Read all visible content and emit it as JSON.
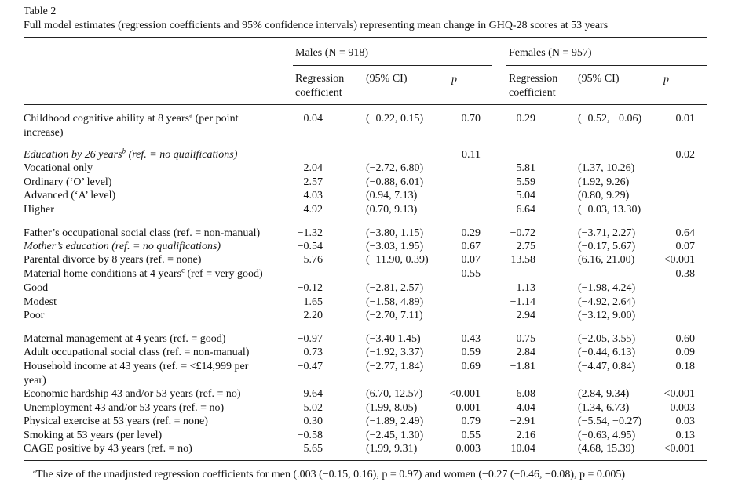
{
  "table": {
    "number": "Table 2",
    "caption": "Full model estimates (regression coefficients and 95% confidence intervals) representing mean change in GHQ-28 scores at 53 years",
    "group_males": "Males (N = 918)",
    "group_females": "Females (N = 957)",
    "col_coef_line1": "Regression",
    "col_coef_line2": "coefficient",
    "col_ci": "(95% CI)",
    "col_p": "p",
    "rows": [
      {
        "label": "Childhood cognitive ability at 8 years",
        "sup": "a",
        "label_cont": " (per point",
        "label2": "increase)",
        "m_coef": "−0.04",
        "m_ci": "(−0.22, 0.15)",
        "m_p": "0.70",
        "f_coef": "−0.29",
        "f_ci": "(−0.52, −0.06)",
        "f_p": "0.01"
      },
      {
        "label": "Education by 26 years",
        "sup": "b",
        "label_cont": " (ref. = no qualifications)",
        "m_p": "0.11",
        "f_p": "0.02"
      },
      {
        "label": "Vocational only",
        "m_coef": "2.04",
        "m_ci": "(−2.72, 6.80)",
        "f_coef": "5.81",
        "f_ci": "(1.37, 10.26)"
      },
      {
        "label": "Ordinary (‘O’ level)",
        "m_coef": "2.57",
        "m_ci": "(−0.88, 6.01)",
        "f_coef": "5.59",
        "f_ci": "(1.92, 9.26)"
      },
      {
        "label": "Advanced (‘A’ level)",
        "m_coef": "4.03",
        "m_ci": "(0.94, 7.13)",
        "f_coef": "5.04",
        "f_ci": "(0.80, 9.29)"
      },
      {
        "label": "Higher",
        "m_coef": "4.92",
        "m_ci": "(0.70, 9.13)",
        "f_coef": "6.64",
        "f_ci": "(−0.03, 13.30)"
      },
      {
        "label": "Father’s occupational social class (ref. = non-manual)",
        "m_coef": "−1.32",
        "m_ci": "(−3.80, 1.15)",
        "m_p": "0.29",
        "f_coef": "−0.72",
        "f_ci": "(−3.71, 2.27)",
        "f_p": "0.64"
      },
      {
        "label": "Mother’s education (ref. = no qualifications)",
        "m_coef": "−0.54",
        "m_ci": "(−3.03, 1.95)",
        "m_p": "0.67",
        "f_coef": "2.75",
        "f_ci": "(−0.17, 5.67)",
        "f_p": "0.07"
      },
      {
        "label": "Parental divorce by 8 years (ref. = none)",
        "m_coef": "−5.76",
        "m_ci": "(−11.90, 0.39)",
        "m_p": "0.07",
        "f_coef": "13.58",
        "f_ci": "(6.16, 21.00)",
        "f_p": "<0.001"
      },
      {
        "label": "Material home conditions at 4 years",
        "sup": "c",
        "label_cont": " (ref = very good)",
        "m_p": "0.55",
        "f_p": "0.38"
      },
      {
        "label": "Good",
        "m_coef": "−0.12",
        "m_ci": "(−2.81, 2.57)",
        "f_coef": "1.13",
        "f_ci": "(−1.98, 4.24)"
      },
      {
        "label": "Modest",
        "m_coef": "1.65",
        "m_ci": "(−1.58, 4.89)",
        "f_coef": "−1.14",
        "f_ci": "(−4.92, 2.64)"
      },
      {
        "label": "Poor",
        "m_coef": "2.20",
        "m_ci": "(−2.70, 7.11)",
        "f_coef": "2.94",
        "f_ci": "(−3.12, 9.00)"
      },
      {
        "label": "Maternal management at 4 years (ref. = good)",
        "m_coef": "−0.97",
        "m_ci": "(−3.40 1.45)",
        "m_p": "0.43",
        "f_coef": "0.75",
        "f_ci": "(−2.05, 3.55)",
        "f_p": "0.60"
      },
      {
        "label": "Adult occupational social class (ref. = non-manual)",
        "m_coef": "0.73",
        "m_ci": "(−1.92, 3.37)",
        "m_p": "0.59",
        "f_coef": "2.84",
        "f_ci": "(−0.44, 6.13)",
        "f_p": "0.09"
      },
      {
        "label": "Household income at 43 years (ref. = <£14,999 per",
        "label2": "year)",
        "m_coef": "−0.47",
        "m_ci": "(−2.77, 1.84)",
        "m_p": "0.69",
        "f_coef": "−1.81",
        "f_ci": "(−4.47, 0.84)",
        "f_p": "0.18"
      },
      {
        "label": "Economic hardship 43 and/or 53 years (ref. = no)",
        "m_coef": "9.64",
        "m_ci": "(6.70, 12.57)",
        "m_p": "<0.001",
        "f_coef": "6.08",
        "f_ci": "(2.84, 9.34)",
        "f_p": "<0.001"
      },
      {
        "label": "Unemployment 43 and/or 53 years (ref. = no)",
        "m_coef": "5.02",
        "m_ci": "(1.99, 8.05)",
        "m_p": "0.001",
        "f_coef": "4.04",
        "f_ci": "(1.34, 6.73)",
        "f_p": "0.003"
      },
      {
        "label": "Physical exercise at 53 years (ref. = none)",
        "m_coef": "0.30",
        "m_ci": "(−1.89, 2.49)",
        "m_p": "0.79",
        "f_coef": "−2.91",
        "f_ci": "(−5.54, −0.27)",
        "f_p": "0.03"
      },
      {
        "label": "Smoking at 53 years (per level)",
        "m_coef": "−0.58",
        "m_ci": "(−2.45, 1.30)",
        "m_p": "0.55",
        "f_coef": "2.16",
        "f_ci": "(−0.63, 4.95)",
        "f_p": "0.13"
      },
      {
        "label": "CAGE positive by 43 years (ref. = no)",
        "m_coef": "5.65",
        "m_ci": "(1.99, 9.31)",
        "m_p": "0.003",
        "f_coef": "10.04",
        "f_ci": "(4.68, 15.39)",
        "f_p": "<0.001"
      }
    ],
    "footnote_sup": "a",
    "footnote": "The size of the unadjusted regression coefficients for men (.003 (−0.15, 0.16), p = 0.97) and women (−0.27 (−0.46, −0.08), p = 0.005)"
  }
}
